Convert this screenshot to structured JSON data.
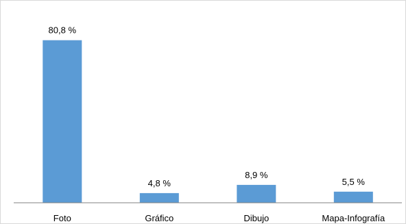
{
  "chart_data": {
    "type": "bar",
    "categories": [
      "Foto",
      "Gráfico",
      "Dibujo",
      "Mapa-Infografía"
    ],
    "values": [
      80.8,
      4.8,
      8.9,
      5.5
    ],
    "data_labels": [
      "80,8 %",
      "4,8 %",
      "8,9 %",
      "5,5 %"
    ],
    "title": "",
    "xlabel": "",
    "ylabel": "",
    "ylim": [
      0,
      100
    ],
    "grid": false,
    "legend": "none",
    "colors": {
      "bar": "#5b9bd5",
      "axis": "#808080",
      "border": "#d9d9d9",
      "text": "#000000"
    }
  }
}
